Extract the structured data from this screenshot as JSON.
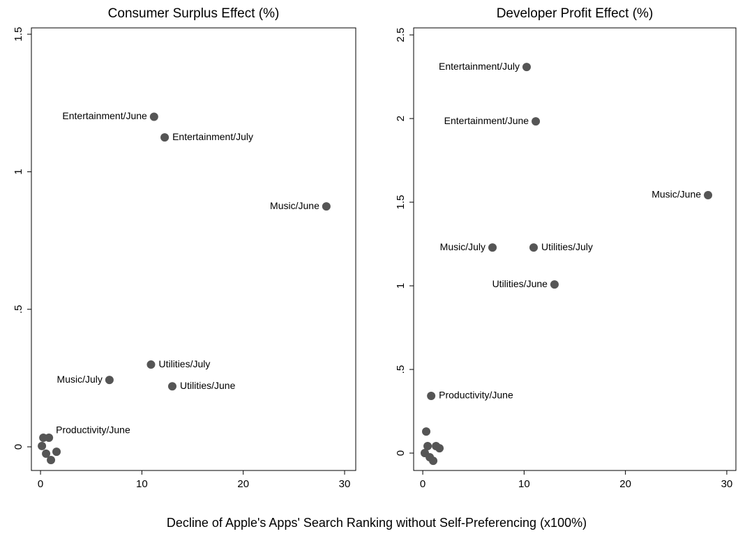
{
  "x_label": "Decline of Apple's Apps' Search Ranking without Self-Preferencing (x100%)",
  "chart_data": [
    {
      "type": "scatter",
      "title": "Consumer Surplus Effect (%)",
      "color": "#555555",
      "x": [
        11.2,
        12.25,
        28.2,
        10.9,
        6.8,
        13.0,
        0.83,
        0.28,
        0.14,
        0.55,
        1.58,
        1.03
      ],
      "values": [
        1.2,
        1.125,
        0.874,
        0.299,
        0.243,
        0.22,
        0.033,
        0.033,
        0.003,
        -0.025,
        -0.018,
        -0.048
      ],
      "labels": [
        "Entertainment/June",
        "Entertainment/July",
        "Music/June",
        "Utilities/July",
        "Music/July",
        "Utilities/June",
        "Productivity/June",
        null,
        null,
        null,
        null,
        null
      ],
      "xlim": [
        -0.9,
        31.1
      ],
      "ylim": [
        -0.086,
        1.523
      ],
      "xticks": [
        0,
        10,
        20,
        30
      ],
      "yticks": [
        0,
        {
          "value": 0.5,
          "label": ".5"
        },
        1,
        1.5
      ]
    },
    {
      "type": "scatter",
      "title": "Developer Profit Effect (%)",
      "color": "#555555",
      "x": [
        10.25,
        11.15,
        28.15,
        6.88,
        10.94,
        13.0,
        0.83,
        0.34,
        0.48,
        0.2,
        0.69,
        1.03,
        1.31,
        1.65
      ],
      "values": [
        2.308,
        1.983,
        1.542,
        1.229,
        1.229,
        1.008,
        0.342,
        0.129,
        0.042,
        0,
        -0.025,
        -0.046,
        0.042,
        0.029
      ],
      "labels": [
        "Entertainment/July",
        "Entertainment/June",
        "Music/June",
        "Music/July",
        "Utilities/July",
        "Utilities/June",
        "Productivity/June",
        null,
        null,
        null,
        null,
        null,
        null,
        null
      ],
      "xlim": [
        -0.9,
        30.9
      ],
      "ylim": [
        -0.104,
        2.542
      ],
      "xticks": [
        0,
        10,
        20,
        30
      ],
      "yticks": [
        0,
        {
          "value": 0.5,
          "label": ".5"
        },
        1,
        {
          "value": 1.5,
          "label": "1.5"
        },
        2,
        {
          "value": 2.5,
          "label": "2.5"
        }
      ]
    }
  ]
}
